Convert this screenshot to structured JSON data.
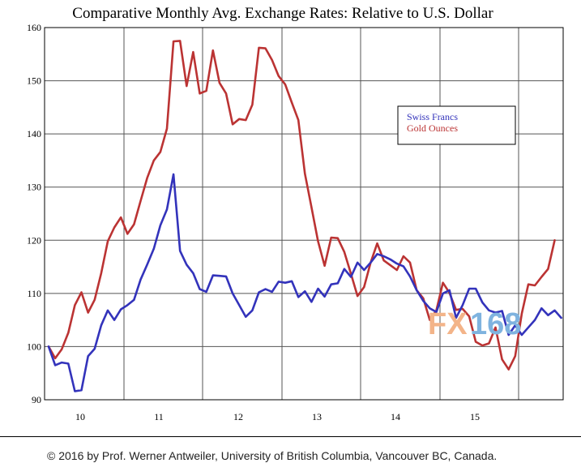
{
  "chart_data": {
    "type": "line",
    "title": "Comparative Monthly Avg. Exchange Rates: Relative to U.S. Dollar",
    "xlabel": "",
    "ylabel": "",
    "ylim": [
      90,
      160
    ],
    "yticks": [
      90,
      100,
      110,
      120,
      130,
      140,
      150,
      160
    ],
    "xticks": [
      "10",
      "11",
      "12",
      "13",
      "14",
      "15"
    ],
    "grid": true,
    "legend_position": "top-right",
    "series": [
      {
        "name": "Swiss Francs",
        "color": "#3333bb",
        "values": [
          100.0,
          96.5,
          97.0,
          96.8,
          91.6,
          91.8,
          98.2,
          99.6,
          104.0,
          106.8,
          105.0,
          107.0,
          107.8,
          108.8,
          112.6,
          115.4,
          118.4,
          122.8,
          125.8,
          132.4,
          118.0,
          115.4,
          113.8,
          110.8,
          110.3,
          113.4,
          113.3,
          113.2,
          110.0,
          107.8,
          105.6,
          106.8,
          110.2,
          110.8,
          110.3,
          112.2,
          112.0,
          112.3,
          109.3,
          110.4,
          108.4,
          110.9,
          109.4,
          111.7,
          111.9,
          114.6,
          113.1,
          115.8,
          114.4,
          115.8,
          117.4,
          117.0,
          116.4,
          115.6,
          115.1,
          113.2,
          110.6,
          108.6,
          107.2,
          106.5,
          110.0,
          110.6,
          105.4,
          107.8,
          110.9,
          110.9,
          108.3,
          106.8,
          106.4,
          106.7,
          102.2,
          104.0,
          102.2,
          103.6,
          105.0,
          107.2,
          105.9,
          106.8,
          105.4
        ]
      },
      {
        "name": "Gold Ounces",
        "color": "#bb3333",
        "values": [
          100.0,
          97.8,
          99.5,
          102.6,
          107.8,
          110.2,
          106.4,
          108.8,
          113.8,
          119.8,
          122.4,
          124.3,
          121.2,
          123.0,
          127.4,
          131.7,
          135.0,
          136.6,
          141.0,
          157.4,
          157.5,
          149.0,
          155.4,
          147.6,
          148.1,
          155.7,
          149.6,
          147.6,
          141.8,
          142.8,
          142.6,
          145.5,
          156.2,
          156.1,
          153.9,
          150.9,
          149.3,
          145.9,
          142.6,
          132.5,
          126.2,
          119.8,
          115.2,
          120.5,
          120.4,
          117.8,
          113.7,
          109.5,
          111.2,
          115.8,
          119.4,
          116.2,
          115.3,
          114.4,
          117.0,
          115.8,
          110.6,
          109.1,
          105.0,
          106.8,
          112.0,
          110.1,
          106.9,
          107.1,
          105.7,
          100.9,
          100.2,
          100.6,
          103.6,
          97.6,
          95.7,
          98.2,
          106.2,
          111.7,
          111.5,
          113.1,
          114.6,
          120.0
        ]
      }
    ]
  },
  "footer_text": "© 2016 by Prof. Werner Antweiler, University of British Columbia, Vancouver BC, Canada.",
  "watermark": {
    "left": "FX",
    "right": "168",
    "left_color": "#f3b489",
    "right_color": "#7fb3df"
  }
}
